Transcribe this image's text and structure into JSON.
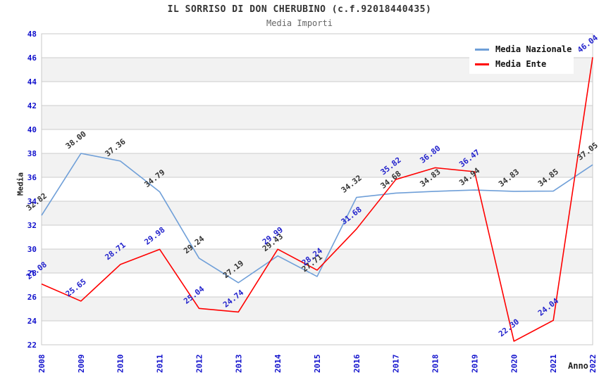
{
  "header": {
    "title": "IL SORRISO DI DON CHERUBINO (c.f.92018440435)",
    "subtitle": "Media Importi"
  },
  "axes": {
    "y_title": "Media",
    "x_title": "Anno"
  },
  "colors": {
    "axis_tick_label": "#1111cc",
    "grid_line": "#cccccc",
    "frame_border": "#c8c8c8",
    "band_white": "#ffffff",
    "band_gray": "#f2f2f2",
    "title_text": "#333333",
    "subtitle_text": "#666666"
  },
  "chart_data": {
    "type": "line",
    "title": "IL SORRISO DI DON CHERUBINO (c.f.92018440435)",
    "subtitle": "Media Importi",
    "xlabel": "Anno",
    "ylabel": "Media",
    "ylim": [
      22,
      48
    ],
    "y_tick_step": 2,
    "grid": true,
    "legend_position": "top-right",
    "band_colors": [
      "#ffffff",
      "#f2f2f2"
    ],
    "categories": [
      "2008",
      "2009",
      "2010",
      "2011",
      "2012",
      "2013",
      "2014",
      "2015",
      "2016",
      "2017",
      "2018",
      "2019",
      "2020",
      "2021",
      "2022"
    ],
    "series": [
      {
        "name": "Media Nazionale",
        "color": "#6f9fd8",
        "label_color": "#333333",
        "values": [
          32.82,
          38.0,
          37.36,
          34.79,
          29.24,
          27.19,
          29.43,
          27.71,
          34.32,
          34.68,
          34.83,
          34.94,
          34.83,
          34.85,
          37.05
        ]
      },
      {
        "name": "Media Ente",
        "color": "#ff0000",
        "label_color": "#2222cc",
        "values": [
          27.08,
          25.65,
          28.71,
          29.98,
          25.04,
          24.74,
          29.99,
          28.24,
          31.68,
          35.82,
          36.8,
          36.47,
          22.3,
          24.04,
          46.04
        ]
      }
    ]
  }
}
